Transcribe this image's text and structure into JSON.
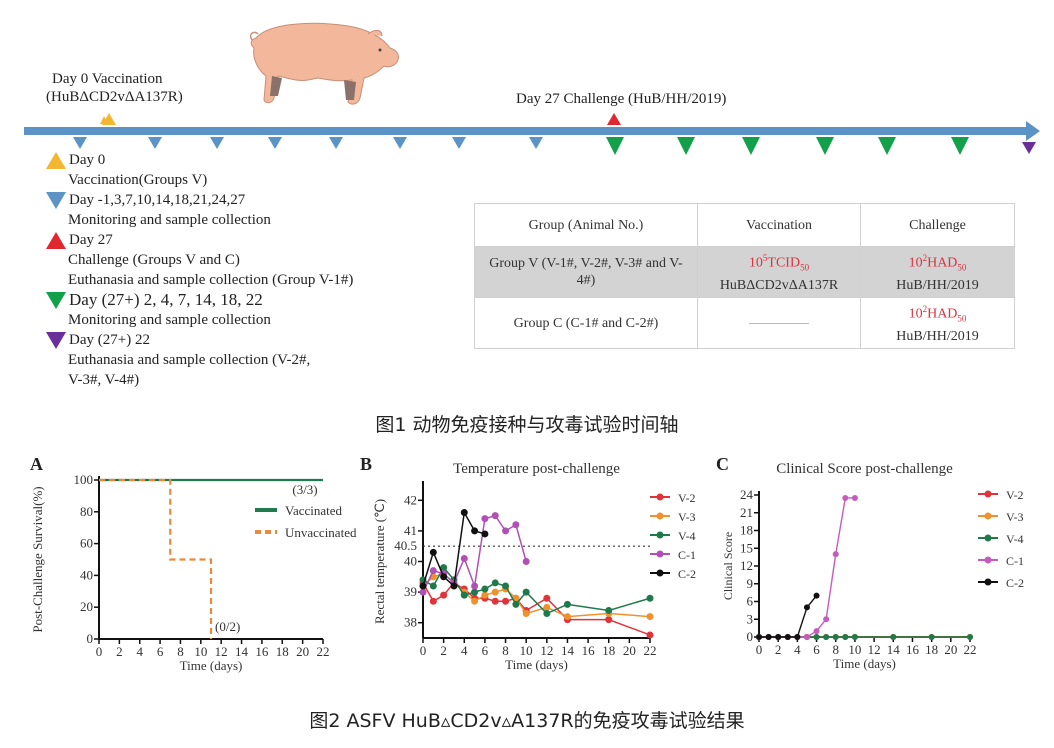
{
  "figure1": {
    "vaccination_label_line1": "Day 0  Vaccination",
    "vaccination_label_line2": "(HuBΔCD2vΔA137R)",
    "challenge_label": "Day 27 Challenge (HuB/HH/2019)",
    "markers": {
      "vaccination_color": "#f2b631",
      "monitoring_color": "#5b93c7",
      "challenge_color": "#e0262e",
      "post_challenge_color": "#12a04a",
      "euthanasia_color": "#6a2f98",
      "timeline_color": "#5b93c7"
    },
    "legend": [
      {
        "marker": "triangle-up-yellow",
        "title": "Day 0",
        "lines": [
          "Vaccination(Groups V)"
        ]
      },
      {
        "marker": "triangle-down-blue",
        "title": "Day -1,3,7,10,14,18,21,24,27",
        "lines": [
          "Monitoring and sample collection"
        ]
      },
      {
        "marker": "triangle-up-red",
        "title": "Day 27",
        "lines": [
          "Challenge (Groups V and C)",
          "Euthanasia and sample collection (Group V-1#)"
        ]
      },
      {
        "marker": "triangle-down-green",
        "title": "Day (27+) 2, 4, 7, 14, 18, 22",
        "lines": [
          "Monitoring and sample collection"
        ]
      },
      {
        "marker": "triangle-down-purple",
        "title": "Day (27+) 22",
        "lines": [
          "Euthanasia and sample collection (V-2#,",
          "V-3#, V-4#)"
        ]
      }
    ],
    "table": {
      "headers": [
        "Group (Animal No.)",
        "Vaccination",
        "Challenge"
      ],
      "rows": [
        {
          "group": "Group V (V-1#, V-2#, V-3# and V-4#)",
          "vaccination_dose_base": "10",
          "vaccination_dose_exp": "5",
          "vaccination_dose_unit": "TCID",
          "vaccination_dose_sub": "50",
          "vaccination_strain": "HuBΔCD2vΔA137R",
          "challenge_dose_base": "10",
          "challenge_dose_exp": "2",
          "challenge_dose_unit": "HAD",
          "challenge_dose_sub": "50",
          "challenge_strain": "HuB/HH/2019"
        },
        {
          "group": "Group C (C-1# and C-2#)",
          "vaccination_dose_base": "",
          "vaccination_strain": "—",
          "challenge_dose_base": "10",
          "challenge_dose_exp": "2",
          "challenge_dose_unit": "HAD",
          "challenge_dose_sub": "50",
          "challenge_strain": "HuB/HH/2019"
        }
      ]
    },
    "caption": "图1 动物免疫接种与攻毒试验时间轴"
  },
  "figure2": {
    "caption": "图2 ASFV HuB▵CD2v▵A137R的免疫攻毒试验结果",
    "panel_labels": [
      "A",
      "B",
      "C"
    ]
  },
  "chart_data": [
    {
      "panel": "A",
      "type": "line",
      "title": "",
      "xlabel": "Time (days)",
      "ylabel": "Post-Challenge Survival(%)",
      "xlim": [
        0,
        22
      ],
      "ylim": [
        0,
        100
      ],
      "xticks": [
        0,
        2,
        4,
        6,
        8,
        10,
        12,
        14,
        16,
        18,
        20,
        22
      ],
      "yticks": [
        0,
        20,
        40,
        60,
        80,
        100
      ],
      "legend_position": "right",
      "series": [
        {
          "name": "Vaccinated",
          "color": "#1f7a4d",
          "style": "solid",
          "step": true,
          "x": [
            0,
            22
          ],
          "y": [
            100,
            100
          ],
          "end_label": "(3/3)"
        },
        {
          "name": "Unvaccinated",
          "color": "#e98a3a",
          "style": "dashed",
          "step": true,
          "x": [
            0,
            7,
            7,
            11,
            11
          ],
          "y": [
            100,
            100,
            50,
            50,
            0
          ],
          "end_label": "(0/2)"
        }
      ]
    },
    {
      "panel": "B",
      "type": "line",
      "title": "Temperature post-challenge",
      "xlabel": "Time (days)",
      "ylabel": "Rectal temperature (℃)",
      "xlim": [
        0,
        22
      ],
      "ylim": [
        37.5,
        42.5
      ],
      "xticks": [
        0,
        2,
        4,
        6,
        8,
        10,
        12,
        14,
        16,
        18,
        20,
        22
      ],
      "yticks": [
        38,
        39,
        40,
        40.5,
        41,
        42
      ],
      "threshold": {
        "value": 40.5,
        "style": "dotted"
      },
      "legend_position": "right",
      "series": [
        {
          "name": "V-2",
          "color": "#e0333a",
          "x": [
            0,
            1,
            2,
            3,
            4,
            5,
            6,
            7,
            8,
            9,
            10,
            12,
            14,
            18,
            22
          ],
          "y": [
            39.3,
            38.7,
            38.9,
            39.3,
            39.1,
            38.8,
            38.8,
            38.7,
            38.7,
            38.8,
            38.4,
            38.8,
            38.1,
            38.1,
            37.6
          ]
        },
        {
          "name": "V-3",
          "color": "#f0922c",
          "x": [
            0,
            1,
            2,
            3,
            4,
            5,
            6,
            7,
            8,
            9,
            10,
            12,
            14,
            18,
            22
          ],
          "y": [
            39.2,
            39.5,
            39.6,
            39.3,
            39.0,
            38.7,
            38.9,
            39.0,
            39.1,
            38.8,
            38.3,
            38.5,
            38.2,
            38.3,
            38.2
          ]
        },
        {
          "name": "V-4",
          "color": "#1e7a4a",
          "x": [
            0,
            1,
            2,
            3,
            4,
            5,
            6,
            7,
            8,
            9,
            10,
            12,
            14,
            18,
            22
          ],
          "y": [
            39.4,
            39.2,
            39.8,
            39.4,
            38.9,
            39.0,
            39.1,
            39.3,
            39.2,
            38.6,
            39.0,
            38.3,
            38.6,
            38.4,
            38.8
          ]
        },
        {
          "name": "C-1",
          "color": "#b04fb5",
          "x": [
            0,
            1,
            2,
            3,
            4,
            5,
            6,
            7,
            8,
            9,
            10
          ],
          "y": [
            39.0,
            39.7,
            39.6,
            39.3,
            40.1,
            39.2,
            41.4,
            41.5,
            41.0,
            41.2,
            40.0
          ]
        },
        {
          "name": "C-2",
          "color": "#111111",
          "x": [
            0,
            1,
            2,
            3,
            4,
            5,
            6
          ],
          "y": [
            39.2,
            40.3,
            39.5,
            39.2,
            41.6,
            41.0,
            40.9
          ]
        }
      ]
    },
    {
      "panel": "C",
      "type": "line",
      "title": "Clinical Score post-challenge",
      "xlabel": "Time (days)",
      "ylabel": "Clinical Score",
      "xlim": [
        0,
        22
      ],
      "ylim": [
        0,
        24
      ],
      "xticks": [
        0,
        2,
        4,
        6,
        8,
        10,
        12,
        14,
        16,
        18,
        20,
        22
      ],
      "yticks": [
        0,
        3,
        6,
        9,
        12,
        15,
        18,
        21,
        24
      ],
      "legend_position": "right",
      "series": [
        {
          "name": "V-2",
          "color": "#e0333a",
          "x": [
            0,
            1,
            2,
            3,
            4,
            5,
            6,
            7,
            8,
            9,
            10,
            14,
            18,
            22
          ],
          "y": [
            0,
            0,
            0,
            0,
            0,
            0,
            0,
            0,
            0,
            0,
            0,
            0,
            0,
            0
          ]
        },
        {
          "name": "V-3",
          "color": "#f0922c",
          "x": [
            0,
            1,
            2,
            3,
            4,
            5,
            6,
            7,
            8,
            9,
            10,
            14,
            18,
            22
          ],
          "y": [
            0,
            0,
            0,
            0,
            0,
            0,
            0,
            0,
            0,
            0,
            0,
            0,
            0,
            0
          ]
        },
        {
          "name": "V-4",
          "color": "#1e7a4a",
          "x": [
            0,
            1,
            2,
            3,
            4,
            5,
            6,
            7,
            8,
            9,
            10,
            14,
            18,
            22
          ],
          "y": [
            0,
            0,
            0,
            0,
            0,
            0,
            0,
            0,
            0,
            0,
            0,
            0,
            0,
            0
          ]
        },
        {
          "name": "C-1",
          "color": "#c65bbf",
          "x": [
            0,
            1,
            2,
            3,
            4,
            5,
            6,
            7,
            8,
            9,
            10
          ],
          "y": [
            0,
            0,
            0,
            0,
            0,
            0,
            1,
            3,
            14,
            23.5,
            23.5
          ]
        },
        {
          "name": "C-2",
          "color": "#111111",
          "x": [
            0,
            1,
            2,
            3,
            4,
            5,
            6
          ],
          "y": [
            0,
            0,
            0,
            0,
            0,
            5,
            7
          ]
        }
      ]
    }
  ]
}
